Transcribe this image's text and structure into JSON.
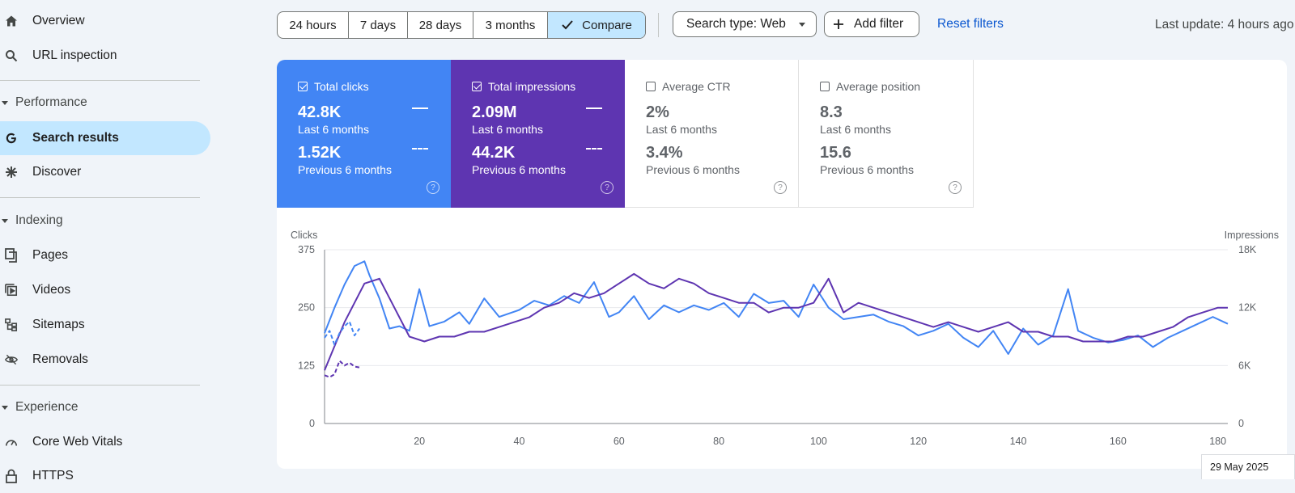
{
  "sidebar": {
    "items": [
      {
        "label": "Overview",
        "icon": "home-icon"
      },
      {
        "label": "URL inspection",
        "icon": "search-icon"
      },
      {
        "label": "Search results",
        "icon": "google-g-icon"
      },
      {
        "label": "Discover",
        "icon": "asterisk-icon"
      },
      {
        "label": "Pages",
        "icon": "pages-icon"
      },
      {
        "label": "Videos",
        "icon": "videos-icon"
      },
      {
        "label": "Sitemaps",
        "icon": "sitemap-icon"
      },
      {
        "label": "Removals",
        "icon": "eye-off-icon"
      },
      {
        "label": "Core Web Vitals",
        "icon": "gauge-icon"
      },
      {
        "label": "HTTPS",
        "icon": "lock-icon"
      }
    ],
    "sections": [
      "Performance",
      "Indexing",
      "Experience"
    ]
  },
  "toolbar": {
    "ranges": [
      "24 hours",
      "7 days",
      "28 days",
      "3 months"
    ],
    "compare_label": "Compare",
    "search_type_label": "Search type: Web",
    "add_filter_label": "Add filter",
    "reset_label": "Reset filters",
    "last_update": "Last update: 4 hours ago"
  },
  "metrics": {
    "clicks": {
      "title": "Total clicks",
      "current": "42.8K",
      "current_label": "Last 6 months",
      "previous": "1.52K",
      "previous_label": "Previous 6 months",
      "checked": true
    },
    "impressions": {
      "title": "Total impressions",
      "current": "2.09M",
      "current_label": "Last 6 months",
      "previous": "44.2K",
      "previous_label": "Previous 6 months",
      "checked": true
    },
    "ctr": {
      "title": "Average CTR",
      "current": "2%",
      "current_label": "Last 6 months",
      "previous": "3.4%",
      "previous_label": "Previous 6 months",
      "checked": false
    },
    "position": {
      "title": "Average position",
      "current": "8.3",
      "current_label": "Last 6 months",
      "previous": "15.6",
      "previous_label": "Previous 6 months",
      "checked": false
    }
  },
  "colors": {
    "clicks": "#4285f4",
    "impressions": "#5e35b1",
    "active_nav": "#c2e7ff",
    "link": "#0b57d0"
  },
  "chart_data": {
    "type": "line",
    "xlabel": "",
    "ylabel_left": "Clicks",
    "ylabel_right": "Impressions",
    "ylim_left": [
      0,
      375
    ],
    "ylim_right": [
      0,
      18000
    ],
    "y_ticks_left": [
      "0",
      "125",
      "250",
      "375"
    ],
    "y_ticks_right": [
      "0",
      "6K",
      "12K",
      "18K"
    ],
    "x_ticks": [
      20,
      40,
      60,
      80,
      100,
      120,
      140,
      160,
      180
    ],
    "xlim": [
      1,
      182
    ],
    "hover_date": "29 May 2025",
    "series": [
      {
        "name": "Total clicks",
        "axis": "left",
        "style": "solid",
        "x": [
          1,
          3,
          5,
          7,
          9,
          10,
          12,
          14,
          16,
          18,
          20,
          22,
          25,
          28,
          30,
          33,
          36,
          40,
          43,
          46,
          49,
          52,
          55,
          58,
          60,
          63,
          66,
          69,
          72,
          75,
          78,
          81,
          84,
          87,
          90,
          93,
          96,
          99,
          102,
          105,
          108,
          111,
          114,
          117,
          120,
          123,
          126,
          129,
          132,
          135,
          138,
          141,
          144,
          147,
          150,
          152,
          155,
          158,
          161,
          164,
          167,
          170,
          173,
          176,
          179,
          182
        ],
        "y": [
          195,
          250,
          300,
          340,
          350,
          320,
          270,
          205,
          210,
          200,
          290,
          210,
          220,
          240,
          215,
          270,
          230,
          245,
          265,
          255,
          275,
          260,
          305,
          230,
          240,
          275,
          225,
          255,
          240,
          255,
          245,
          260,
          230,
          280,
          260,
          265,
          230,
          300,
          250,
          225,
          230,
          235,
          220,
          210,
          190,
          200,
          215,
          185,
          165,
          200,
          150,
          205,
          170,
          190,
          290,
          200,
          185,
          175,
          180,
          190,
          165,
          185,
          200,
          215,
          230,
          215
        ]
      },
      {
        "name": "Total impressions",
        "axis": "right",
        "style": "solid",
        "x": [
          1,
          3,
          5,
          7,
          9,
          12,
          15,
          18,
          21,
          24,
          27,
          30,
          33,
          36,
          39,
          42,
          45,
          48,
          51,
          54,
          57,
          60,
          63,
          66,
          69,
          72,
          75,
          78,
          81,
          84,
          87,
          90,
          93,
          96,
          99,
          102,
          105,
          108,
          111,
          114,
          117,
          120,
          123,
          126,
          129,
          132,
          135,
          138,
          141,
          144,
          147,
          150,
          153,
          156,
          159,
          162,
          165,
          168,
          171,
          174,
          177,
          180,
          182
        ],
        "y": [
          5500,
          8000,
          10500,
          12500,
          14500,
          15000,
          12000,
          9000,
          8500,
          9000,
          9000,
          9500,
          9500,
          10000,
          10500,
          11000,
          12000,
          12500,
          13500,
          13000,
          13500,
          14500,
          15500,
          14500,
          14000,
          15000,
          14500,
          13500,
          13000,
          12500,
          12500,
          11500,
          12000,
          12000,
          12500,
          15000,
          11500,
          12500,
          12000,
          11500,
          11000,
          10500,
          10000,
          10500,
          10000,
          9500,
          10000,
          10500,
          9500,
          9500,
          9000,
          9000,
          8500,
          8500,
          8500,
          9000,
          9000,
          9500,
          10000,
          11000,
          11500,
          12000,
          12000
        ]
      },
      {
        "name": "Total clicks (previous)",
        "axis": "left",
        "style": "dashed",
        "x": [
          1,
          2,
          3,
          4,
          5,
          6,
          7,
          8
        ],
        "y": [
          185,
          200,
          170,
          195,
          210,
          220,
          190,
          205
        ]
      },
      {
        "name": "Total impressions (previous)",
        "axis": "right",
        "style": "dashed",
        "x": [
          1,
          2,
          3,
          4,
          5,
          6,
          7,
          8
        ],
        "y": [
          5000,
          4800,
          5100,
          6500,
          6000,
          6300,
          5900,
          5800
        ]
      }
    ]
  }
}
